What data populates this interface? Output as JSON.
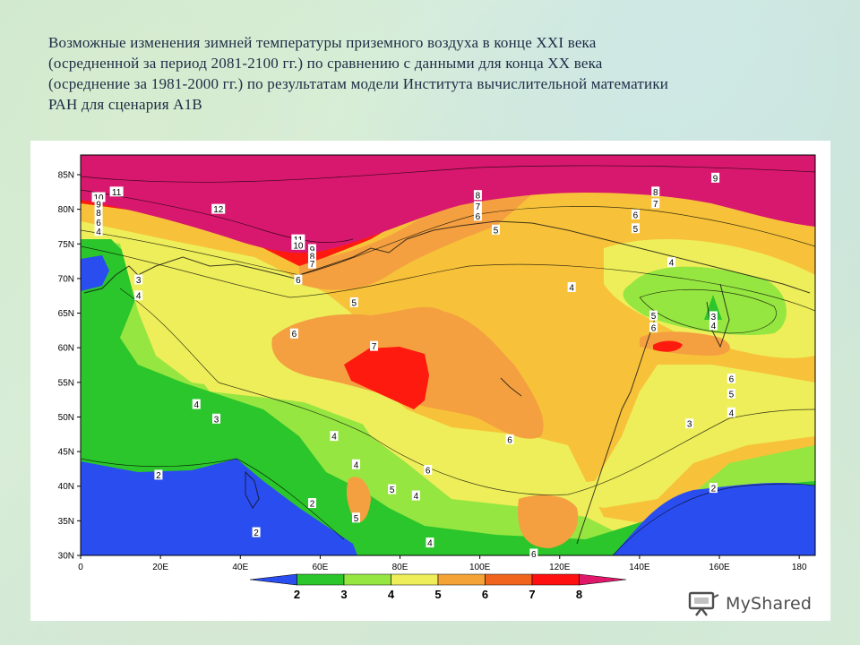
{
  "title_lines": [
    "Возможные изменения  зимней температуры приземного воздуха в конце XXI века",
    "(осредненной за период 2081-2100 гг.) по сравнению с данными для конца XX века",
    "(осреднение за 1981-2000 гг.) по результатам модели Института вычислительной математики",
    "РАН для сценария  А1В"
  ],
  "map": {
    "lat_ticks": [
      "85N",
      "80N",
      "75N",
      "70N",
      "65N",
      "60N",
      "55N",
      "50N",
      "45N",
      "40N",
      "35N",
      "30N"
    ],
    "lon_ticks": [
      "0",
      "20E",
      "40E",
      "60E",
      "80E",
      "100E",
      "120E",
      "140E",
      "160E",
      "180"
    ],
    "contour_labels": [
      {
        "text": "9",
        "lon": 159,
        "lat": 84.5
      },
      {
        "text": "8",
        "lon": 144,
        "lat": 82.5
      },
      {
        "text": "7",
        "lon": 144,
        "lat": 80.8
      },
      {
        "text": "6",
        "lon": 139,
        "lat": 79.2
      },
      {
        "text": "5",
        "lon": 139,
        "lat": 77.2
      },
      {
        "text": "4",
        "lon": 148,
        "lat": 72.3
      },
      {
        "text": "4",
        "lon": 123,
        "lat": 68.7
      },
      {
        "text": "3",
        "lon": 158.5,
        "lat": 64.5
      },
      {
        "text": "4",
        "lon": 158.5,
        "lat": 63.2
      },
      {
        "text": "5",
        "lon": 143.5,
        "lat": 64.6
      },
      {
        "text": "6",
        "lon": 143.5,
        "lat": 62.9
      },
      {
        "text": "6",
        "lon": 163,
        "lat": 55.5
      },
      {
        "text": "5",
        "lon": 163,
        "lat": 53.3
      },
      {
        "text": "4",
        "lon": 163,
        "lat": 50.6
      },
      {
        "text": "3",
        "lon": 152.5,
        "lat": 49.0
      },
      {
        "text": "2",
        "lon": 158.5,
        "lat": 39.7
      },
      {
        "text": "8",
        "lon": 99.5,
        "lat": 82.0
      },
      {
        "text": "7",
        "lon": 99.5,
        "lat": 80.4
      },
      {
        "text": "6",
        "lon": 99.5,
        "lat": 79.0
      },
      {
        "text": "5",
        "lon": 104,
        "lat": 77.0
      },
      {
        "text": "11",
        "lon": 9,
        "lat": 82.5
      },
      {
        "text": "10",
        "lon": 4.5,
        "lat": 81.7
      },
      {
        "text": "9",
        "lon": 4.5,
        "lat": 80.7
      },
      {
        "text": "8",
        "lon": 4.5,
        "lat": 79.5
      },
      {
        "text": "6",
        "lon": 4.5,
        "lat": 78.1
      },
      {
        "text": "4",
        "lon": 4.5,
        "lat": 76.8
      },
      {
        "text": "12",
        "lon": 34.5,
        "lat": 80.0
      },
      {
        "text": "11",
        "lon": 54.5,
        "lat": 75.6
      },
      {
        "text": "10",
        "lon": 54.5,
        "lat": 74.8
      },
      {
        "text": "9",
        "lon": 58,
        "lat": 74.2
      },
      {
        "text": "8",
        "lon": 58,
        "lat": 73.2
      },
      {
        "text": "7",
        "lon": 58,
        "lat": 72.1
      },
      {
        "text": "6",
        "lon": 54.5,
        "lat": 69.8
      },
      {
        "text": "5",
        "lon": 68.5,
        "lat": 66.5
      },
      {
        "text": "3",
        "lon": 14.5,
        "lat": 69.8
      },
      {
        "text": "4",
        "lon": 14.5,
        "lat": 67.5
      },
      {
        "text": "6",
        "lon": 53.5,
        "lat": 62.0
      },
      {
        "text": "7",
        "lon": 73.5,
        "lat": 60.2
      },
      {
        "text": "4",
        "lon": 29,
        "lat": 51.8
      },
      {
        "text": "3",
        "lon": 34,
        "lat": 49.7
      },
      {
        "text": "4",
        "lon": 63.5,
        "lat": 47.2
      },
      {
        "text": "6",
        "lon": 107.5,
        "lat": 46.7
      },
      {
        "text": "4",
        "lon": 69,
        "lat": 43.1
      },
      {
        "text": "6",
        "lon": 87,
        "lat": 42.3
      },
      {
        "text": "2",
        "lon": 19.5,
        "lat": 41.6
      },
      {
        "text": "5",
        "lon": 78,
        "lat": 39.5
      },
      {
        "text": "4",
        "lon": 84,
        "lat": 38.6
      },
      {
        "text": "2",
        "lon": 58,
        "lat": 37.5
      },
      {
        "text": "5",
        "lon": 69,
        "lat": 35.4
      },
      {
        "text": "2",
        "lon": 44,
        "lat": 33.3
      },
      {
        "text": "4",
        "lon": 87.5,
        "lat": 31.8
      },
      {
        "text": "6",
        "lon": 113.5,
        "lat": 30.2
      }
    ]
  },
  "colorbar": {
    "labels": [
      "2",
      "3",
      "4",
      "5",
      "6",
      "7",
      "8"
    ],
    "colors": [
      "#2a4df0",
      "#2bc62b",
      "#96e641",
      "#eeee5a",
      "#f4a437",
      "#f0641e",
      "#ff1010",
      "#e0186a"
    ]
  },
  "colors": {
    "c_lt2": "#2a4df0",
    "c_2_3": "#2bc62b",
    "c_3_4": "#96e641",
    "c_4_5": "#eeee5a",
    "c_5_6": "#f7c23a",
    "c_6_7": "#f4a040",
    "c_7_8": "#ff1a10",
    "c_gt8": "#d8186e"
  },
  "watermark": {
    "text": "MyShared"
  }
}
